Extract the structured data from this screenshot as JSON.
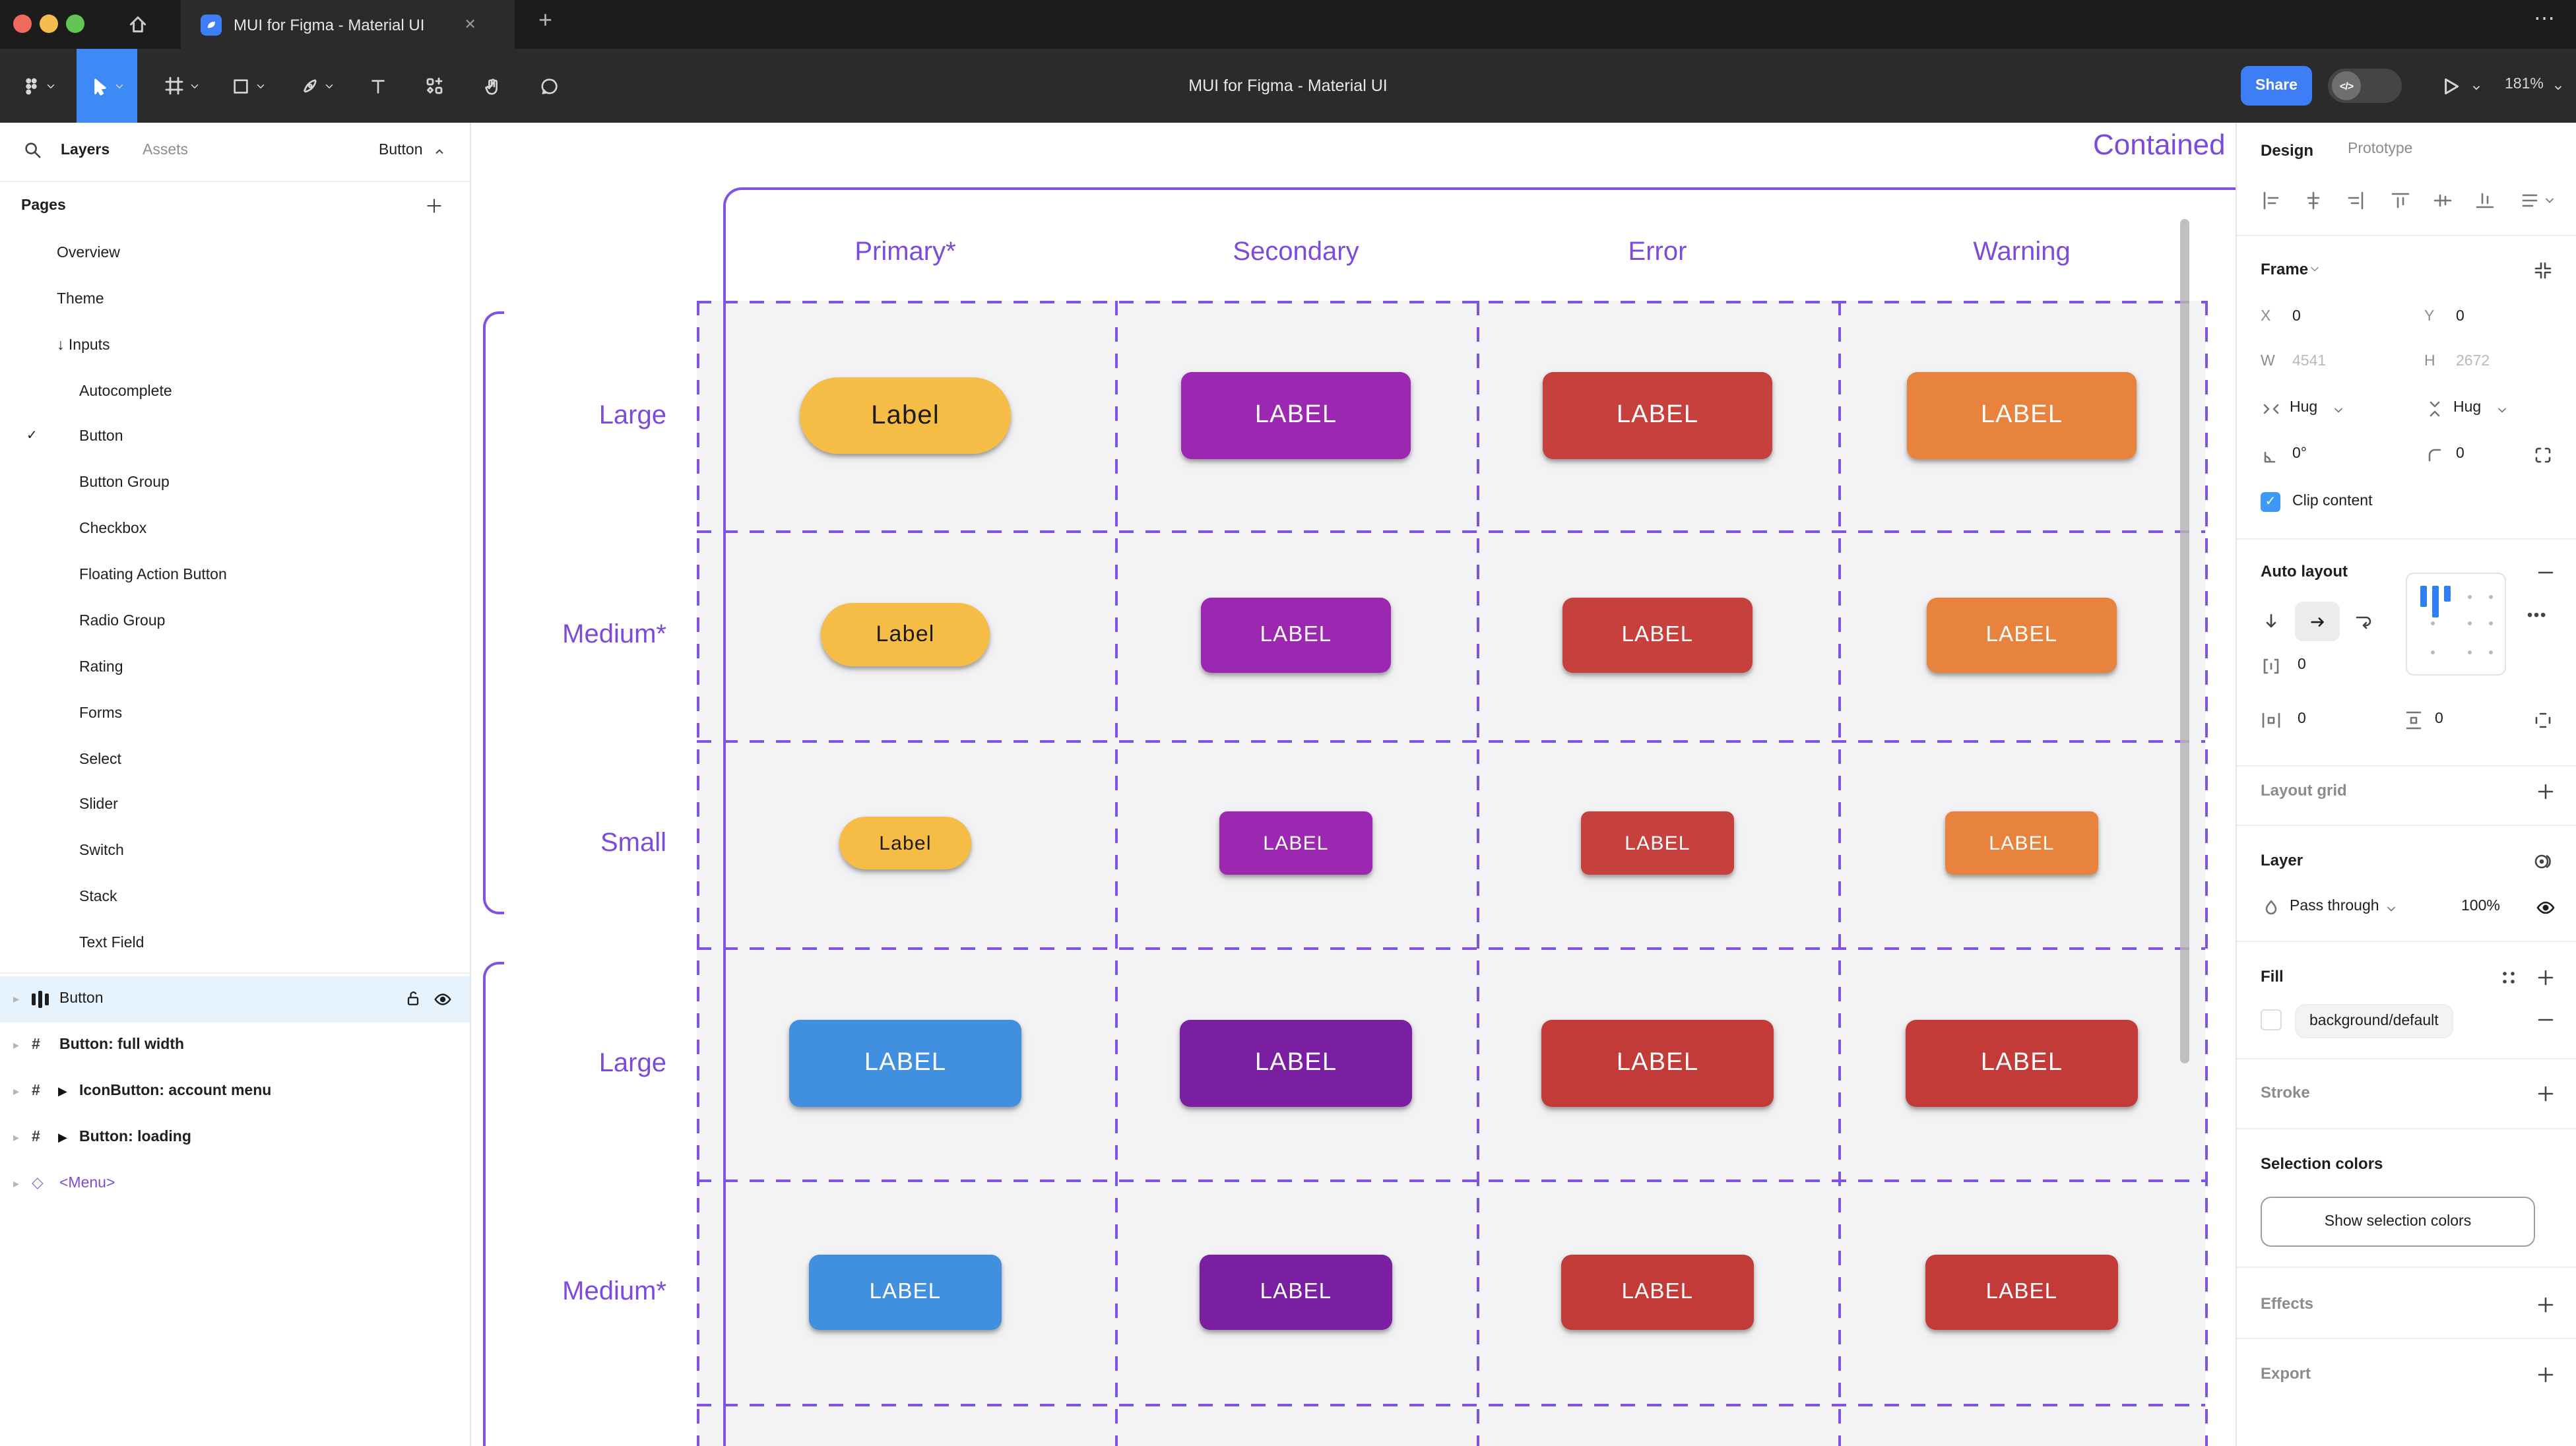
{
  "window": {
    "tab_title": "MUI for Figma - Material UI",
    "close_glyph": "✕",
    "new_tab_glyph": "+",
    "more_glyph": "⋯"
  },
  "toolbar": {
    "document_title": "MUI for Figma - Material UI",
    "share_label": "Share",
    "dev_toggle_glyph": "</>",
    "zoom_level": "181%"
  },
  "icons": {
    "frame_glyph": "#",
    "component_glyph": "▶",
    "instance_glyph": "◇",
    "check_glyph": "✓",
    "inputs_arrow_glyph": "↓",
    "row_chevron_glyph": "▸"
  },
  "sidebar": {
    "layers_tab": "Layers",
    "assets_tab": "Assets",
    "page_indicator": "Button",
    "pages_header": "Pages",
    "pages": [
      {
        "label": "Overview",
        "level": 1
      },
      {
        "label": "Theme",
        "level": 1
      },
      {
        "label": "Inputs",
        "level": 1,
        "arrow": true
      },
      {
        "label": "Autocomplete",
        "level": 2
      },
      {
        "label": "Button",
        "level": 2,
        "checked": true
      },
      {
        "label": "Button Group",
        "level": 2
      },
      {
        "label": "Checkbox",
        "level": 2
      },
      {
        "label": "Floating Action Button",
        "level": 2
      },
      {
        "label": "Radio Group",
        "level": 2
      },
      {
        "label": "Rating",
        "level": 2
      },
      {
        "label": "Forms",
        "level": 2
      },
      {
        "label": "Select",
        "level": 2
      },
      {
        "label": "Slider",
        "level": 2
      },
      {
        "label": "Switch",
        "level": 2
      },
      {
        "label": "Stack",
        "level": 2
      },
      {
        "label": "Text Field",
        "level": 2
      }
    ],
    "layers": [
      {
        "label": "Button",
        "icon": "autolayout",
        "selected": true
      },
      {
        "label": "Button: full width",
        "icon": "frame"
      },
      {
        "label": "IconButton: account menu",
        "icon": "frame",
        "component": true
      },
      {
        "label": "Button: loading",
        "icon": "frame",
        "component": true
      },
      {
        "label": "<Menu>",
        "icon": "instance",
        "purple": true
      }
    ]
  },
  "canvas": {
    "frame_title": "Contained",
    "columns": [
      "Primary*",
      "Secondary",
      "Error",
      "Warning"
    ],
    "rows": [
      {
        "label": "Large",
        "cells": [
          {
            "text": "Label",
            "bg": "#F5BD45",
            "fg": "#1E1B12",
            "w": 160,
            "h": 58,
            "r": 29,
            "fs": 20
          },
          {
            "text": "LABEL",
            "bg": "#9C27B0",
            "fg": "#FFFFFF",
            "w": 174,
            "h": 66,
            "r": 8,
            "fs": 19
          },
          {
            "text": "LABEL",
            "bg": "#C6413D",
            "fg": "#FFFFFF",
            "w": 174,
            "h": 66,
            "r": 8,
            "fs": 19
          },
          {
            "text": "LABEL",
            "bg": "#E8833D",
            "fg": "#FFFFFF",
            "w": 174,
            "h": 66,
            "r": 8,
            "fs": 19
          }
        ]
      },
      {
        "label": "Medium*",
        "cells": [
          {
            "text": "Label",
            "bg": "#F5BD45",
            "fg": "#1E1B12",
            "w": 128,
            "h": 48,
            "r": 24,
            "fs": 17
          },
          {
            "text": "LABEL",
            "bg": "#9C27B0",
            "fg": "#FFFFFF",
            "w": 144,
            "h": 57,
            "r": 8,
            "fs": 16.5
          },
          {
            "text": "LABEL",
            "bg": "#C6413D",
            "fg": "#FFFFFF",
            "w": 144,
            "h": 57,
            "r": 8,
            "fs": 16.5
          },
          {
            "text": "LABEL",
            "bg": "#E8833D",
            "fg": "#FFFFFF",
            "w": 144,
            "h": 57,
            "r": 8,
            "fs": 16.5
          }
        ]
      },
      {
        "label": "Small",
        "cells": [
          {
            "text": "Label",
            "bg": "#F5BD45",
            "fg": "#1E1B12",
            "w": 100,
            "h": 40,
            "r": 20,
            "fs": 15
          },
          {
            "text": "LABEL",
            "bg": "#9C27B0",
            "fg": "#FFFFFF",
            "w": 116,
            "h": 48,
            "r": 6,
            "fs": 15
          },
          {
            "text": "LABEL",
            "bg": "#C6413D",
            "fg": "#FFFFFF",
            "w": 116,
            "h": 48,
            "r": 6,
            "fs": 15
          },
          {
            "text": "LABEL",
            "bg": "#E8833D",
            "fg": "#FFFFFF",
            "w": 116,
            "h": 48,
            "r": 6,
            "fs": 15
          }
        ]
      },
      {
        "label": "Large",
        "cells": [
          {
            "text": "LABEL",
            "bg": "#4190E0",
            "fg": "#FFFFFF",
            "w": 176,
            "h": 66,
            "r": 8,
            "fs": 19
          },
          {
            "text": "LABEL",
            "bg": "#7B1FA2",
            "fg": "#FFFFFF",
            "w": 176,
            "h": 66,
            "r": 8,
            "fs": 19
          },
          {
            "text": "LABEL",
            "bg": "#C23B38",
            "fg": "#FFFFFF",
            "w": 176,
            "h": 66,
            "r": 8,
            "fs": 19
          },
          {
            "text": "LABEL",
            "bg": "#C23B38",
            "fg": "#FFFFFF",
            "w": 176,
            "h": 66,
            "r": 8,
            "fs": 19
          }
        ]
      },
      {
        "label": "Medium*",
        "cells": [
          {
            "text": "LABEL",
            "bg": "#4190E0",
            "fg": "#FFFFFF",
            "w": 146,
            "h": 57,
            "r": 8,
            "fs": 16.5
          },
          {
            "text": "LABEL",
            "bg": "#7B1FA2",
            "fg": "#FFFFFF",
            "w": 146,
            "h": 57,
            "r": 8,
            "fs": 16.5
          },
          {
            "text": "LABEL",
            "bg": "#C23B38",
            "fg": "#FFFFFF",
            "w": 146,
            "h": 57,
            "r": 8,
            "fs": 16.5
          },
          {
            "text": "LABEL",
            "bg": "#C23B38",
            "fg": "#FFFFFF",
            "w": 146,
            "h": 57,
            "r": 8,
            "fs": 16.5
          }
        ]
      }
    ]
  },
  "panel": {
    "design_tab": "Design",
    "prototype_tab": "Prototype",
    "frame_title": "Frame",
    "x_label": "X",
    "x_value": "0",
    "y_label": "Y",
    "y_value": "0",
    "w_label": "W",
    "w_value": "4541",
    "h_label": "H",
    "h_value": "2672",
    "hug_h": "Hug",
    "hug_v": "Hug",
    "rotation_value": "0°",
    "radius_value": "0",
    "clip_label": "Clip content",
    "auto_layout_title": "Auto layout",
    "gap_value": "0",
    "padding_h_value": "0",
    "padding_v_value": "0",
    "layout_grid_title": "Layout grid",
    "layer_title": "Layer",
    "blend_mode": "Pass through",
    "opacity_value": "100%",
    "fill_title": "Fill",
    "fill_value": "background/default",
    "stroke_title": "Stroke",
    "selection_colors_title": "Selection colors",
    "show_selection_colors_label": "Show selection colors",
    "effects_title": "Effects",
    "export_title": "Export"
  },
  "colors": {
    "accent_blue": "#3D7DF5",
    "canvas_purple_text": "#7C4BDC",
    "canvas_purple_line": "#8053E2",
    "selection_row": "#E6F2FC",
    "primary_yellow": "#F5BD45",
    "secondary_purple": "#9C27B0",
    "error_red": "#C6413D",
    "warning_orange": "#E8833D",
    "primary_blue": "#4190E0",
    "secondary_dark_purple": "#7B1FA2",
    "error_red_dark": "#C23B38"
  }
}
